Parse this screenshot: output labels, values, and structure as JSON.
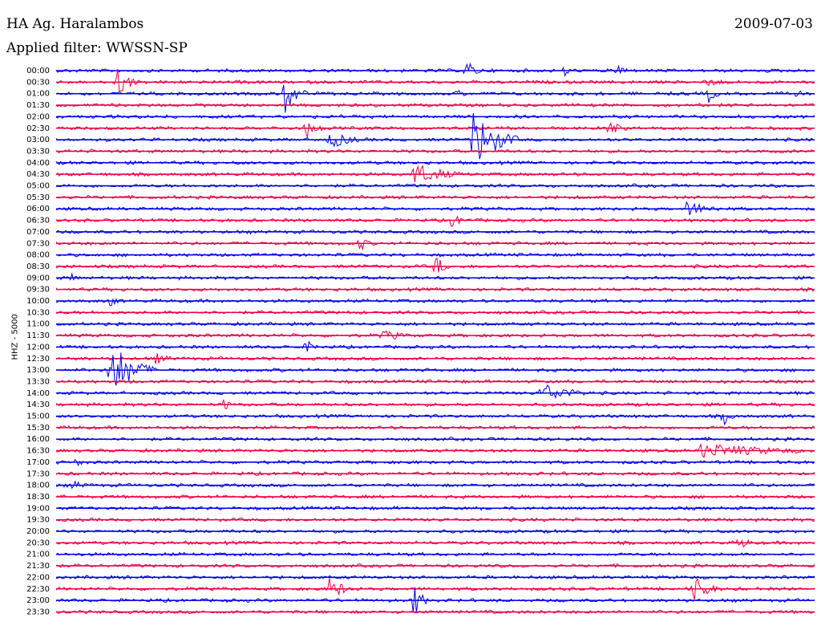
{
  "header": {
    "station": "HA Ag. Haralambos",
    "filter": "Applied filter: WWSSN-SP",
    "date": "2009-07-03"
  },
  "channel_label": "HHZ - 5000",
  "colors": {
    "blue": "#0000ee",
    "red": "#ee0044"
  },
  "chart_data": {
    "type": "line",
    "title": "HA Ag. Haralambos",
    "subtitle": "Applied filter: WWSSN-SP",
    "ylabel": "HHZ - 5000",
    "ytick_labels": [
      "00:00",
      "00:30",
      "01:00",
      "01:30",
      "02:00",
      "02:30",
      "03:00",
      "03:30",
      "04:00",
      "04:30",
      "05:00",
      "05:30",
      "06:00",
      "06:30",
      "07:00",
      "07:30",
      "08:00",
      "08:30",
      "09:00",
      "09:30",
      "10:00",
      "10:30",
      "11:00",
      "11:30",
      "12:00",
      "12:30",
      "13:00",
      "13:30",
      "14:00",
      "14:30",
      "15:00",
      "15:30",
      "16:00",
      "16:30",
      "17:00",
      "17:30",
      "18:00",
      "18:30",
      "19:00",
      "19:30",
      "20:00",
      "20:30",
      "21:00",
      "21:30",
      "22:00",
      "22:30",
      "23:00",
      "23:30"
    ],
    "trace_colors": [
      "blue",
      "red"
    ],
    "events": [
      {
        "trace": "00:00",
        "pos": 0.54,
        "amp": 14,
        "dur": 0.03
      },
      {
        "trace": "00:00",
        "pos": 0.67,
        "amp": 10,
        "dur": 0.02
      },
      {
        "trace": "00:00",
        "pos": 0.74,
        "amp": 9,
        "dur": 0.03
      },
      {
        "trace": "00:30",
        "pos": 0.08,
        "amp": 22,
        "dur": 0.03
      },
      {
        "trace": "00:30",
        "pos": 0.85,
        "amp": 6,
        "dur": 0.08
      },
      {
        "trace": "01:00",
        "pos": 0.3,
        "amp": 30,
        "dur": 0.03
      },
      {
        "trace": "01:00",
        "pos": 0.53,
        "amp": 8,
        "dur": 0.02
      },
      {
        "trace": "01:00",
        "pos": 0.86,
        "amp": 12,
        "dur": 0.02
      },
      {
        "trace": "01:00",
        "pos": 0.97,
        "amp": 12,
        "dur": 0.02
      },
      {
        "trace": "02:30",
        "pos": 0.33,
        "amp": 14,
        "dur": 0.03
      },
      {
        "trace": "02:30",
        "pos": 0.73,
        "amp": 12,
        "dur": 0.03
      },
      {
        "trace": "03:00",
        "pos": 0.55,
        "amp": 40,
        "dur": 0.06
      },
      {
        "trace": "03:00",
        "pos": 0.36,
        "amp": 12,
        "dur": 0.06
      },
      {
        "trace": "04:30",
        "pos": 0.47,
        "amp": 16,
        "dur": 0.08
      },
      {
        "trace": "06:00",
        "pos": 0.83,
        "amp": 10,
        "dur": 0.08
      },
      {
        "trace": "06:30",
        "pos": 0.52,
        "amp": 10,
        "dur": 0.03
      },
      {
        "trace": "07:30",
        "pos": 0.4,
        "amp": 12,
        "dur": 0.02
      },
      {
        "trace": "08:30",
        "pos": 0.5,
        "amp": 18,
        "dur": 0.02
      },
      {
        "trace": "09:00",
        "pos": 0.02,
        "amp": 8,
        "dur": 0.02
      },
      {
        "trace": "10:00",
        "pos": 0.07,
        "amp": 10,
        "dur": 0.02
      },
      {
        "trace": "11:30",
        "pos": 0.43,
        "amp": 8,
        "dur": 0.06
      },
      {
        "trace": "12:00",
        "pos": 0.33,
        "amp": 10,
        "dur": 0.03
      },
      {
        "trace": "12:30",
        "pos": 0.13,
        "amp": 8,
        "dur": 0.04
      },
      {
        "trace": "13:00",
        "pos": 0.07,
        "amp": 40,
        "dur": 0.06
      },
      {
        "trace": "14:00",
        "pos": 0.64,
        "amp": 14,
        "dur": 0.08
      },
      {
        "trace": "14:30",
        "pos": 0.22,
        "amp": 10,
        "dur": 0.02
      },
      {
        "trace": "15:00",
        "pos": 0.88,
        "amp": 12,
        "dur": 0.02
      },
      {
        "trace": "16:30",
        "pos": 0.85,
        "amp": 10,
        "dur": 0.22
      },
      {
        "trace": "17:00",
        "pos": 0.02,
        "amp": 6,
        "dur": 0.05
      },
      {
        "trace": "18:00",
        "pos": 0.02,
        "amp": 6,
        "dur": 0.05
      },
      {
        "trace": "20:30",
        "pos": 0.9,
        "amp": 10,
        "dur": 0.03
      },
      {
        "trace": "22:30",
        "pos": 0.36,
        "amp": 16,
        "dur": 0.04
      },
      {
        "trace": "22:30",
        "pos": 0.84,
        "amp": 20,
        "dur": 0.04
      },
      {
        "trace": "23:00",
        "pos": 0.47,
        "amp": 30,
        "dur": 0.02
      }
    ]
  }
}
